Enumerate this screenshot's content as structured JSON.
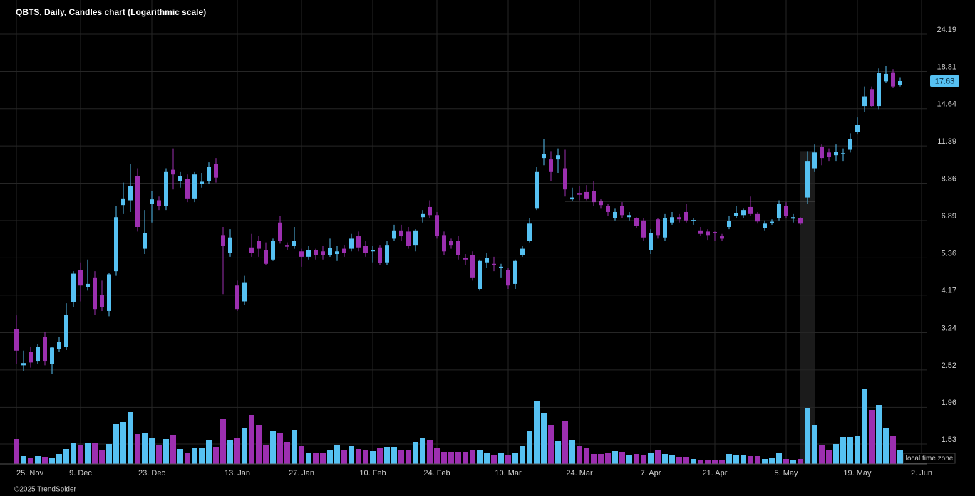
{
  "chart_data": {
    "type": "candlestick",
    "title": "QBTS, Daily, Candles chart (Logarithmic scale)",
    "copyright": "©2025 TrendSpider",
    "timezone_label": "local time zone",
    "log_scale": true,
    "grid": true,
    "up_color": "#56c1f2",
    "down_color": "#9c2fb0",
    "ylim": [
      1.3,
      25.62
    ],
    "yticks": [
      24.19,
      18.81,
      14.64,
      11.39,
      8.86,
      6.89,
      5.36,
      4.17,
      3.24,
      2.52,
      1.96,
      1.53
    ],
    "categories": [
      "25. Nov",
      null,
      null,
      null,
      null,
      null,
      null,
      null,
      null,
      "9. Dec",
      null,
      null,
      null,
      null,
      null,
      null,
      null,
      null,
      null,
      "23. Dec",
      null,
      null,
      null,
      null,
      null,
      null,
      null,
      null,
      null,
      null,
      null,
      "13. Jan",
      null,
      null,
      null,
      null,
      null,
      null,
      null,
      null,
      "27. Jan",
      null,
      null,
      null,
      null,
      null,
      null,
      null,
      null,
      null,
      "10. Feb",
      null,
      null,
      null,
      null,
      null,
      null,
      null,
      null,
      "24. Feb",
      null,
      null,
      null,
      null,
      null,
      null,
      null,
      null,
      null,
      "10. Mar",
      null,
      null,
      null,
      null,
      null,
      null,
      null,
      null,
      null,
      "24. Mar",
      null,
      null,
      null,
      null,
      null,
      null,
      null,
      null,
      null,
      "7. Apr",
      null,
      null,
      null,
      null,
      null,
      null,
      null,
      null,
      "21. Apr",
      null,
      null,
      null,
      null,
      null,
      null,
      null,
      null,
      null,
      "5. May",
      null,
      null,
      null,
      null,
      null,
      null,
      null,
      null,
      null,
      "19. May",
      null,
      null,
      null,
      null,
      null,
      null,
      null,
      null,
      "2. Jun"
    ],
    "open": [
      3.31,
      2.6,
      2.85,
      2.68,
      3.15,
      2.62,
      2.9,
      2.95,
      3.99,
      4.95,
      4.4,
      4.7,
      4.18,
      3.75,
      4.9,
      7.65,
      7.9,
      9.3,
      5.7,
      7.7,
      7.9,
      7.6,
      9.7,
      9.0,
      9.1,
      8.0,
      8.8,
      9.0,
      10.1,
      6.25,
      5.55,
      4.45,
      4.0,
      5.75,
      6.0,
      5.65,
      5.3,
      6.8,
      5.85,
      5.8,
      5.6,
      5.4,
      5.65,
      5.6,
      5.45,
      5.5,
      5.7,
      5.7,
      6.2,
      5.8,
      5.6,
      5.75,
      5.2,
      6.1,
      6.45,
      6.4,
      5.85,
      7.05,
      7.55,
      7.15,
      6.25,
      6.0,
      6.0,
      5.35,
      5.45,
      4.35,
      5.2,
      5.15,
      5.0,
      4.95,
      4.5,
      5.45,
      6.0,
      7.5,
      10.5,
      10.4,
      10.4,
      9.8,
      7.95,
      8.3,
      8.35,
      8.4,
      7.85,
      7.6,
      7.0,
      7.6,
      7.05,
      7.0,
      6.9,
      5.65,
      6.95,
      6.15,
      6.8,
      7.05,
      7.3,
      6.88,
      6.45,
      6.4,
      6.38,
      6.2,
      6.6,
      7.1,
      7.15,
      7.55,
      7.2,
      6.55,
      6.78,
      7.0,
      7.6,
      6.98,
      7.0,
      8.05,
      9.8,
      11.3,
      10.9,
      10.7,
      10.8,
      11.1,
      12.5,
      14.9,
      16.7,
      14.9,
      17.6,
      18.7,
      17.2,
      null,
      null,
      null
    ],
    "high": [
      3.64,
      2.87,
      2.95,
      3.0,
      3.25,
      2.95,
      3.15,
      3.95,
      4.9,
      5.2,
      5.3,
      4.9,
      4.6,
      4.85,
      7.6,
      8.9,
      10.1,
      9.8,
      7.4,
      8.4,
      8.1,
      9.8,
      11.2,
      9.6,
      9.4,
      9.6,
      9.5,
      10.2,
      10.5,
      6.6,
      6.5,
      4.6,
      4.75,
      6.3,
      6.2,
      5.95,
      6.1,
      7.1,
      5.95,
      6.6,
      5.7,
      5.8,
      5.7,
      5.8,
      6.1,
      5.8,
      5.85,
      6.3,
      6.4,
      6.0,
      5.8,
      5.85,
      6.0,
      6.7,
      6.7,
      6.6,
      6.5,
      7.4,
      7.9,
      7.3,
      6.4,
      6.1,
      6.2,
      5.5,
      5.6,
      5.3,
      5.55,
      5.4,
      5.15,
      5.0,
      5.3,
      5.8,
      7.0,
      9.9,
      11.9,
      11.0,
      11.2,
      11.1,
      8.6,
      8.7,
      8.75,
      9.0,
      7.95,
      7.7,
      7.5,
      7.8,
      7.3,
      7.05,
      7.0,
      6.5,
      7.0,
      7.2,
      7.3,
      7.2,
      7.7,
      7.0,
      6.6,
      6.5,
      6.4,
      6.3,
      7.1,
      7.6,
      7.5,
      8.1,
      7.3,
      6.9,
      6.95,
      7.9,
      7.8,
      7.2,
      7.05,
      11.0,
      11.5,
      11.5,
      11.2,
      11.5,
      11.2,
      12.4,
      13.8,
      17.0,
      17.0,
      19.2,
      19.5,
      19.1,
      18.1,
      null,
      null,
      null
    ],
    "low": [
      2.62,
      2.5,
      2.56,
      2.62,
      2.6,
      2.45,
      2.85,
      2.88,
      3.85,
      4.0,
      4.3,
      3.65,
      3.75,
      3.62,
      4.75,
      7.2,
      7.3,
      6.4,
      5.5,
      6.8,
      7.4,
      7.4,
      8.5,
      8.6,
      7.8,
      7.8,
      8.6,
      8.8,
      8.9,
      4.2,
      5.4,
      3.75,
      3.9,
      5.4,
      5.4,
      5.1,
      5.25,
      5.9,
      5.65,
      5.7,
      5.05,
      5.3,
      5.3,
      5.3,
      5.4,
      5.25,
      5.4,
      5.6,
      5.6,
      5.4,
      5.2,
      5.1,
      5.1,
      6.0,
      6.0,
      5.7,
      5.6,
      6.8,
      7.0,
      6.1,
      5.45,
      5.7,
      5.3,
      5.1,
      4.6,
      4.3,
      5.0,
      4.9,
      4.7,
      4.35,
      4.35,
      5.4,
      5.95,
      7.4,
      10.0,
      9.0,
      9.5,
      8.1,
      7.85,
      7.9,
      7.9,
      7.6,
      7.5,
      7.1,
      6.9,
      7.0,
      6.9,
      6.55,
      6.0,
      5.5,
      6.1,
      6.0,
      6.7,
      6.8,
      6.8,
      6.7,
      6.2,
      6.05,
      6.0,
      6.0,
      6.5,
      7.0,
      7.0,
      7.1,
      6.75,
      6.45,
      6.7,
      6.9,
      7.0,
      6.8,
      6.7,
      7.7,
      9.6,
      10.0,
      10.3,
      10.3,
      10.3,
      10.9,
      12.3,
      14.3,
      14.8,
      14.6,
      17.4,
      16.8,
      17.0,
      null,
      null,
      null
    ],
    "close": [
      2.87,
      2.64,
      2.65,
      2.95,
      2.68,
      2.93,
      3.05,
      3.65,
      4.82,
      4.45,
      4.5,
      3.8,
      3.85,
      4.8,
      7.05,
      8.0,
      8.7,
      6.6,
      6.35,
      7.95,
      7.6,
      9.6,
      9.4,
      9.3,
      8.0,
      9.4,
      8.95,
      9.9,
      9.2,
      5.8,
      6.15,
      3.8,
      4.55,
      5.55,
      5.7,
      5.15,
      6.0,
      6.0,
      5.78,
      6.0,
      5.4,
      5.65,
      5.45,
      5.45,
      5.72,
      5.6,
      5.55,
      6.1,
      5.75,
      5.55,
      5.65,
      5.18,
      5.85,
      6.45,
      6.2,
      5.8,
      6.45,
      7.2,
      7.15,
      6.2,
      5.6,
      5.85,
      5.45,
      5.3,
      4.7,
      5.25,
      5.35,
      5.1,
      5.05,
      4.45,
      5.25,
      5.7,
      6.75,
      9.6,
      10.8,
      9.6,
      10.7,
      8.5,
      8.05,
      8.2,
      8.0,
      7.8,
      7.65,
      7.3,
      7.3,
      7.15,
      7.15,
      6.65,
      6.15,
      6.35,
      6.25,
      7.0,
      7.05,
      6.95,
      6.9,
      6.92,
      6.3,
      6.25,
      6.33,
      6.1,
      6.88,
      7.25,
      7.4,
      7.2,
      6.85,
      6.75,
      6.84,
      7.7,
      7.1,
      7.05,
      6.75,
      10.3,
      10.9,
      10.5,
      10.6,
      10.95,
      10.85,
      11.9,
      13.1,
      15.9,
      14.9,
      18.6,
      18.5,
      17.0,
      17.63,
      null,
      null,
      null
    ],
    "volume": [
      35,
      11,
      8,
      11,
      10,
      8,
      14,
      21,
      30,
      27,
      30,
      29,
      20,
      28,
      56,
      59,
      73,
      42,
      43,
      36,
      26,
      35,
      41,
      21,
      16,
      23,
      22,
      33,
      24,
      63,
      33,
      37,
      51,
      69,
      55,
      26,
      46,
      44,
      31,
      48,
      25,
      16,
      15,
      16,
      20,
      26,
      20,
      25,
      21,
      20,
      18,
      22,
      24,
      24,
      19,
      19,
      31,
      37,
      34,
      23,
      17,
      17,
      17,
      17,
      19,
      19,
      15,
      13,
      15,
      13,
      15,
      25,
      46,
      89,
      72,
      55,
      32,
      60,
      34,
      25,
      22,
      14,
      14,
      15,
      18,
      17,
      12,
      14,
      12,
      16,
      19,
      14,
      12,
      10,
      10,
      7,
      6,
      5,
      5,
      5,
      14,
      12,
      13,
      11,
      11,
      7,
      9,
      15,
      7,
      6,
      7,
      78,
      55,
      26,
      20,
      28,
      38,
      38,
      39,
      105,
      76,
      83,
      51,
      39,
      20,
      null,
      null,
      null
    ],
    "level_line": {
      "value": 7.85,
      "start": 78,
      "end": 112
    },
    "highlight_index": 111
  }
}
